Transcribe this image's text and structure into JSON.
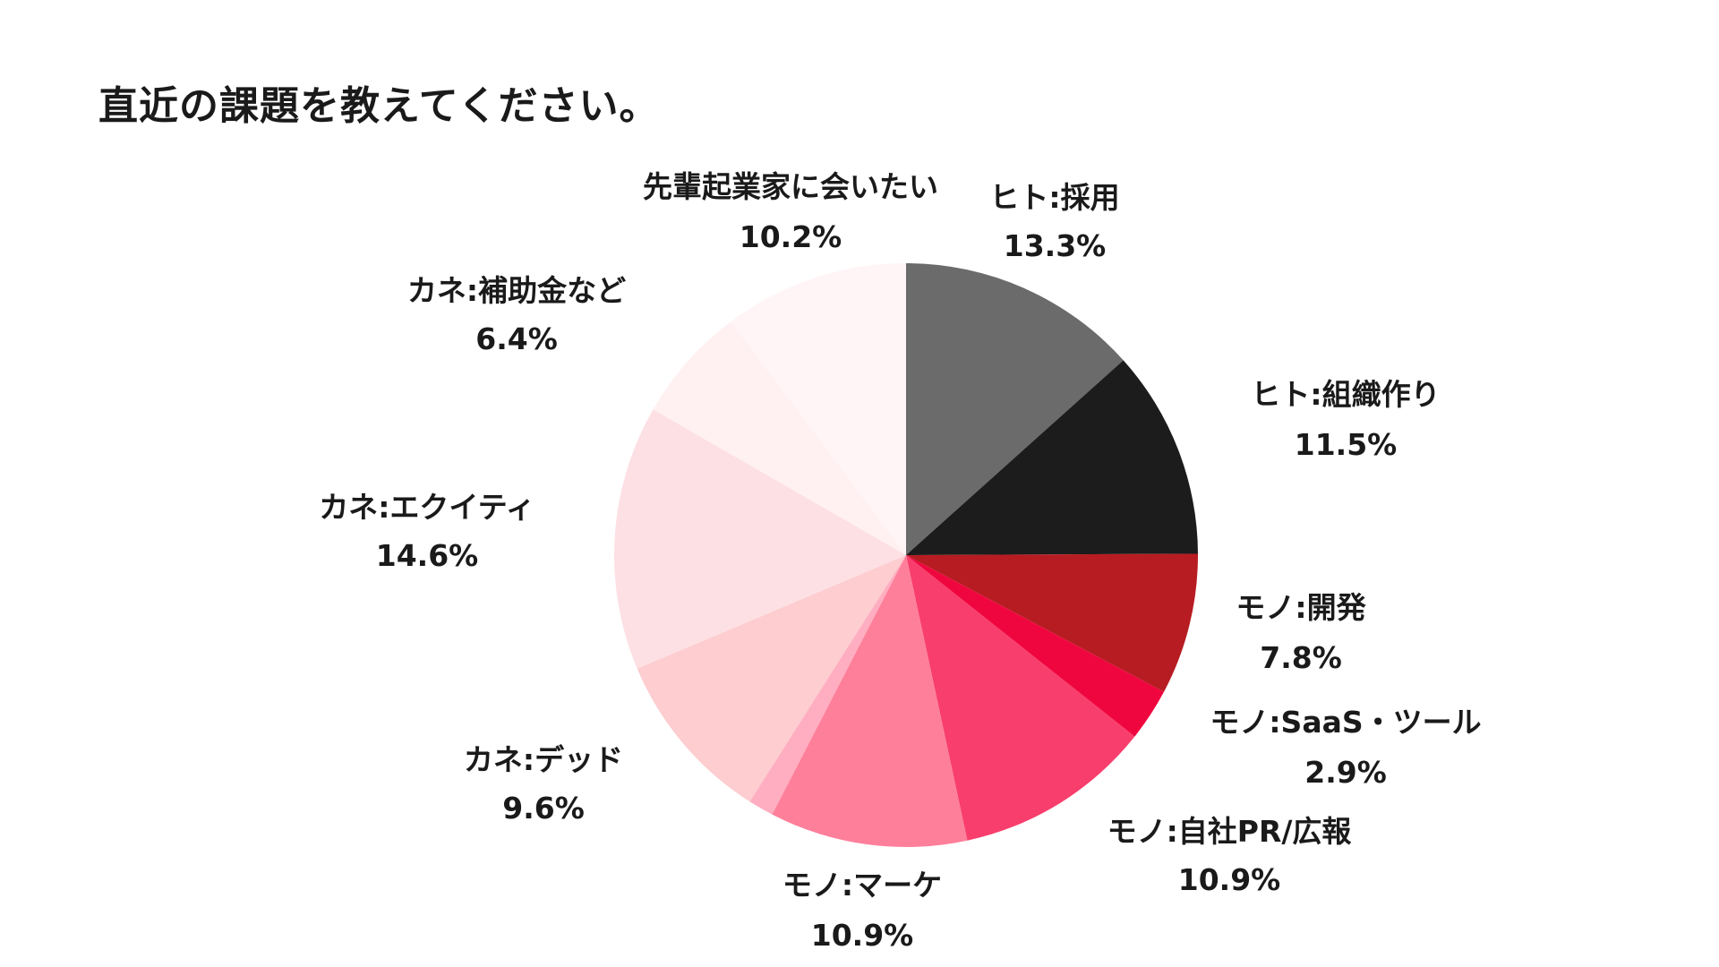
{
  "title": "直近の課題を教えてください。",
  "chart_data": {
    "type": "pie",
    "title": "直近の課題を教えてください。",
    "start_angle_deg": 0,
    "direction": "clockwise",
    "slices": [
      {
        "label": "ヒト:採用",
        "value": 13.3,
        "display": "13.3%",
        "color": "#6b6b6b"
      },
      {
        "label": "ヒト:組織作り",
        "value": 11.5,
        "display": "11.5%",
        "color": "#1c1c1c"
      },
      {
        "label": "モノ:開発",
        "value": 7.8,
        "display": "7.8%",
        "color": "#b71c22"
      },
      {
        "label": "モノ:SaaS・ツール",
        "value": 2.9,
        "display": "2.9%",
        "color": "#f0063f"
      },
      {
        "label": "モノ:自社PR/広報",
        "value": 10.9,
        "display": "10.9%",
        "color": "#f83e6c"
      },
      {
        "label": "モノ:マーケ",
        "value": 10.9,
        "display": "10.9%",
        "color": "#fe7f9a"
      },
      {
        "label": "",
        "value": 1.4,
        "display": "",
        "color": "#ffadc0"
      },
      {
        "label": "カネ:デッド",
        "value": 9.6,
        "display": "9.6%",
        "color": "#fdcdd0"
      },
      {
        "label": "カネ:エクイティ",
        "value": 14.6,
        "display": "14.6%",
        "color": "#fde0e4"
      },
      {
        "label": "カネ:補助金など",
        "value": 6.4,
        "display": "6.4%",
        "color": "#fff0f2"
      },
      {
        "label": "先輩起業家に会いたい",
        "value": 10.2,
        "display": "10.2%",
        "color": "#fff4f6"
      }
    ]
  }
}
